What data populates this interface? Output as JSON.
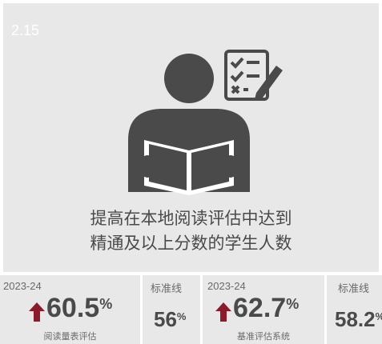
{
  "card": {
    "code": "2.15",
    "headline": [
      "提高在本地阅读评估中达到",
      "精通及以上分数的学生人数"
    ]
  },
  "stats": [
    {
      "year": "2023-24",
      "value": "60.5",
      "unit": "%",
      "label": "阅读量表评估"
    },
    {
      "standard_label": "标准线",
      "value": "56",
      "unit": "%"
    },
    {
      "year": "2023-24",
      "value": "62.7",
      "unit": "%",
      "label": "基准评估系统"
    },
    {
      "standard_label": "标准线",
      "value": "58.2",
      "unit": "%"
    }
  ]
}
